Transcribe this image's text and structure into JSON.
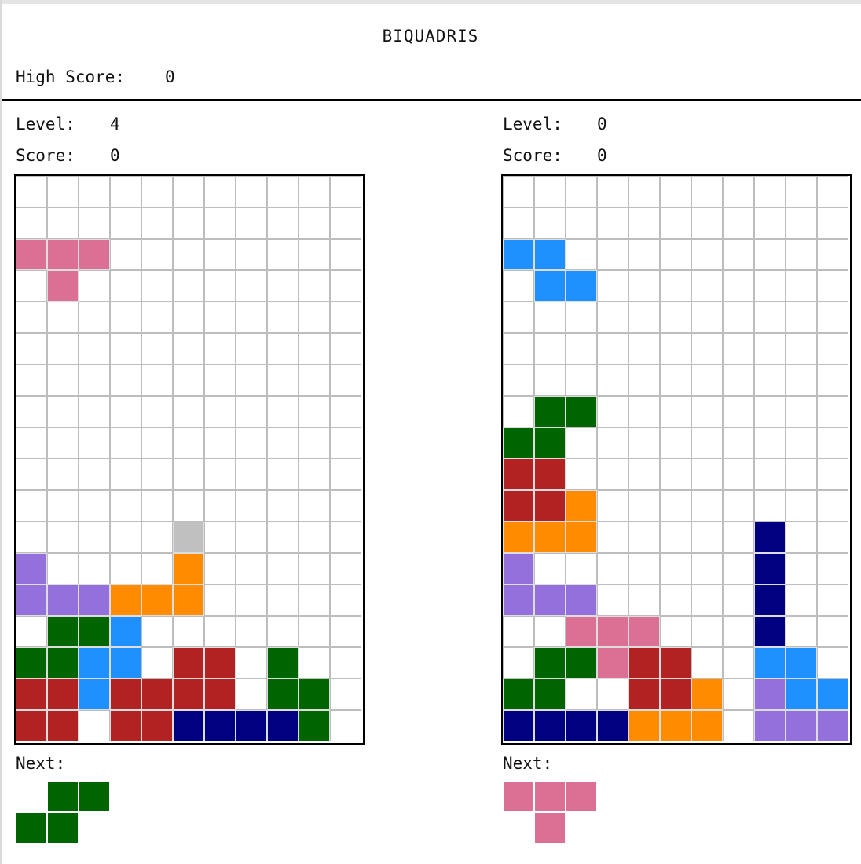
{
  "title": "BIQUADRIS",
  "high_score": {
    "label": "High Score:",
    "value": "0"
  },
  "colors": {
    "empty": "#ffffff",
    "grid_line": "#bdbdbd",
    "T": "#dc7094",
    "S": "#006400",
    "Z": "#b22222",
    "L": "#ff8c00",
    "J": "#9370db",
    "I": "#000080",
    "O": "#1e90ff",
    "star": "#c0c0c0"
  },
  "players": [
    {
      "level_label": "Level:",
      "level": "4",
      "score_label": "Score:",
      "score": "0",
      "next_label": "Next:",
      "board_rows": [
        "...........",
        "...........",
        "TTT........",
        ".T.........",
        "...........",
        "...........",
        "...........",
        "...........",
        "...........",
        "...........",
        "...........",
        ".....*.....",
        "J....L.....",
        "JJJLLL.....",
        ".SSO.......",
        "SSOO.ZZ.S..",
        "ZZOZZZZ.SS.",
        "ZZ.ZZIIIIS."
      ],
      "next_rows": [
        ".SS",
        "SS."
      ]
    },
    {
      "level_label": "Level:",
      "level": "0",
      "score_label": "Score:",
      "score": "0",
      "next_label": "Next:",
      "board_rows": [
        "...........",
        "...........",
        "OO.........",
        ".OO........",
        "...........",
        "...........",
        "...........",
        ".SS........",
        "SS.........",
        "ZZ.........",
        "ZZL........",
        "LLL.....I..",
        "J.......I..",
        "JJJ.....I..",
        "..TTT...I..",
        ".SSTZZ..OO.",
        "SS..ZZL.JOO",
        "IIIILLL.JJJ"
      ],
      "next_rows": [
        "TTT",
        ".T."
      ]
    }
  ]
}
